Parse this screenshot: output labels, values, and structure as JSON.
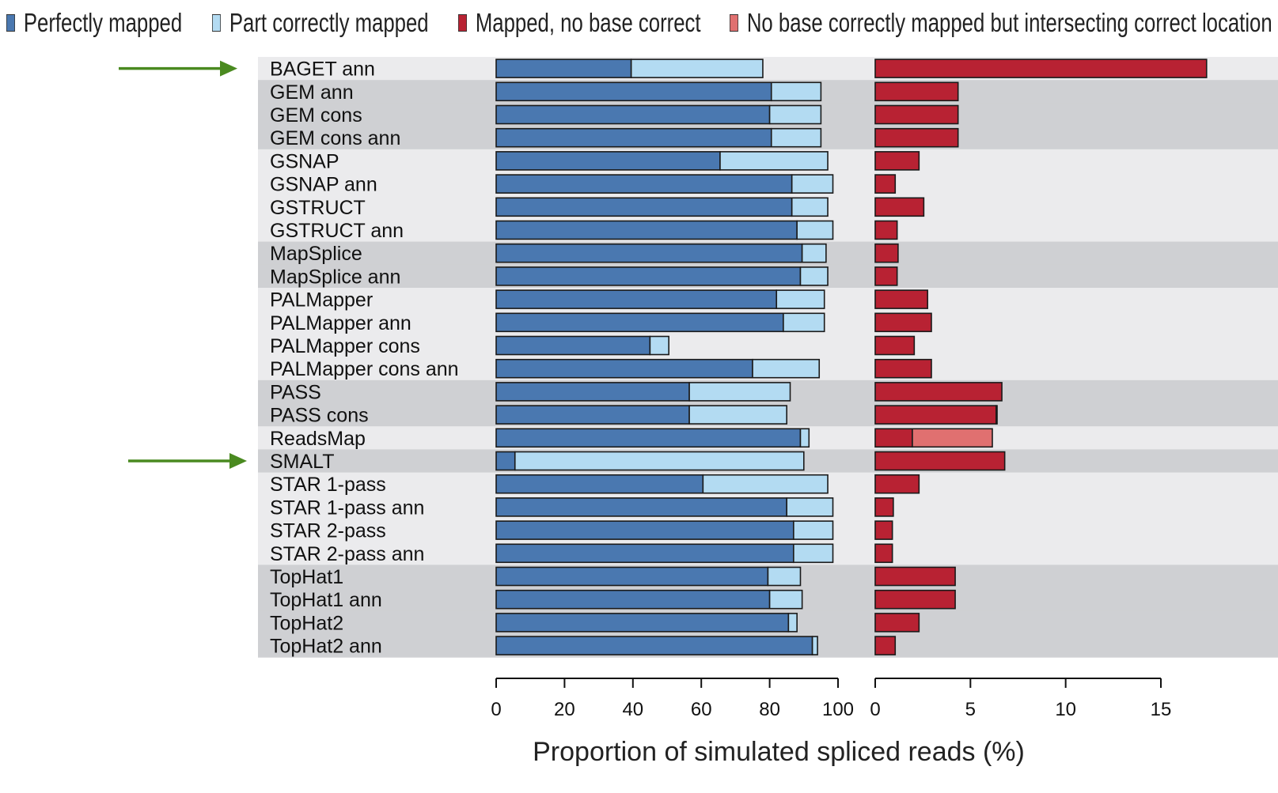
{
  "colors": {
    "perfect": "#4a78b0",
    "part": "#b3dbf2",
    "mapped_wrong": "#b82233",
    "intersect": "#e07070",
    "band_light": "#ebebed",
    "band_dark": "#cfd0d3",
    "arrow": "#4a8a20"
  },
  "legend": [
    {
      "label": "Perfectly mapped",
      "color": "#4a78b0"
    },
    {
      "label": "Part correctly mapped",
      "color": "#b3dbf2"
    },
    {
      "label": "Mapped, no base correct",
      "color": "#b82233"
    },
    {
      "label": "No base correctly mapped but intersecting correct location",
      "color": "#e07070"
    }
  ],
  "chart_data": {
    "type": "bar",
    "orientation": "horizontal",
    "stacked": true,
    "xlabel": "Proportion of simulated spliced reads (%)",
    "categories": [
      "BAGET ann",
      "GEM ann",
      "GEM cons",
      "GEM cons ann",
      "GSNAP",
      "GSNAP ann",
      "GSTRUCT",
      "GSTRUCT ann",
      "MapSplice",
      "MapSplice ann",
      "PALMapper",
      "PALMapper ann",
      "PALMapper cons",
      "PALMapper cons ann",
      "PASS",
      "PASS cons",
      "ReadsMap",
      "SMALT",
      "STAR 1-pass",
      "STAR 1-pass ann",
      "STAR 2-pass",
      "STAR 2-pass ann",
      "TopHat1",
      "TopHat1 ann",
      "TopHat2",
      "TopHat2 ann"
    ],
    "band_groups": [
      "light",
      "dark",
      "dark",
      "dark",
      "light",
      "light",
      "light",
      "light",
      "dark",
      "dark",
      "light",
      "light",
      "light",
      "light",
      "dark",
      "dark",
      "light",
      "dark",
      "light",
      "light",
      "light",
      "light",
      "dark",
      "dark",
      "dark",
      "dark"
    ],
    "highlighted": [
      "BAGET ann",
      "SMALT"
    ],
    "panels": [
      {
        "name": "left",
        "xlim": [
          0,
          100
        ],
        "ticks": [
          0,
          20,
          40,
          60,
          80,
          100
        ],
        "series": [
          {
            "name": "Perfectly mapped",
            "color_key": "perfect",
            "values": [
              39.5,
              80.5,
              80,
              80.5,
              65.5,
              86.5,
              86.5,
              88,
              89.5,
              89,
              82,
              84,
              45,
              75,
              56.5,
              56.5,
              89,
              5.5,
              60.5,
              85,
              87,
              87,
              79.5,
              80,
              85.5,
              92.5
            ]
          },
          {
            "name": "Part correctly mapped",
            "color_key": "part",
            "values": [
              38.5,
              14.5,
              15,
              14.5,
              31.5,
              12,
              10.5,
              10.5,
              7,
              8,
              14,
              12,
              5.5,
              19.5,
              29.5,
              28.5,
              2.5,
              84.5,
              36.5,
              13.5,
              11.5,
              11.5,
              9.5,
              9.5,
              2.5,
              1.5
            ]
          }
        ]
      },
      {
        "name": "right",
        "xlim": [
          0,
          17.5
        ],
        "ticks": [
          0,
          5,
          10,
          15
        ],
        "series": [
          {
            "name": "Mapped, no base correct",
            "color_key": "mapped_wrong",
            "values": [
              17.4,
              4.35,
              4.35,
              4.35,
              2.3,
              1.05,
              2.55,
              1.15,
              1.2,
              1.15,
              2.75,
              2.95,
              2.05,
              2.95,
              6.65,
              6.35,
              1.95,
              6.8,
              2.3,
              0.95,
              0.9,
              0.9,
              4.2,
              4.2,
              2.3,
              1.05
            ]
          },
          {
            "name": "No base correctly mapped but intersecting correct location",
            "color_key": "intersect",
            "values": [
              0,
              0,
              0,
              0,
              0,
              0,
              0,
              0,
              0,
              0,
              0,
              0,
              0,
              0,
              0,
              0.05,
              4.2,
              0,
              0,
              0,
              0,
              0,
              0,
              0,
              0,
              0
            ]
          }
        ]
      }
    ]
  }
}
